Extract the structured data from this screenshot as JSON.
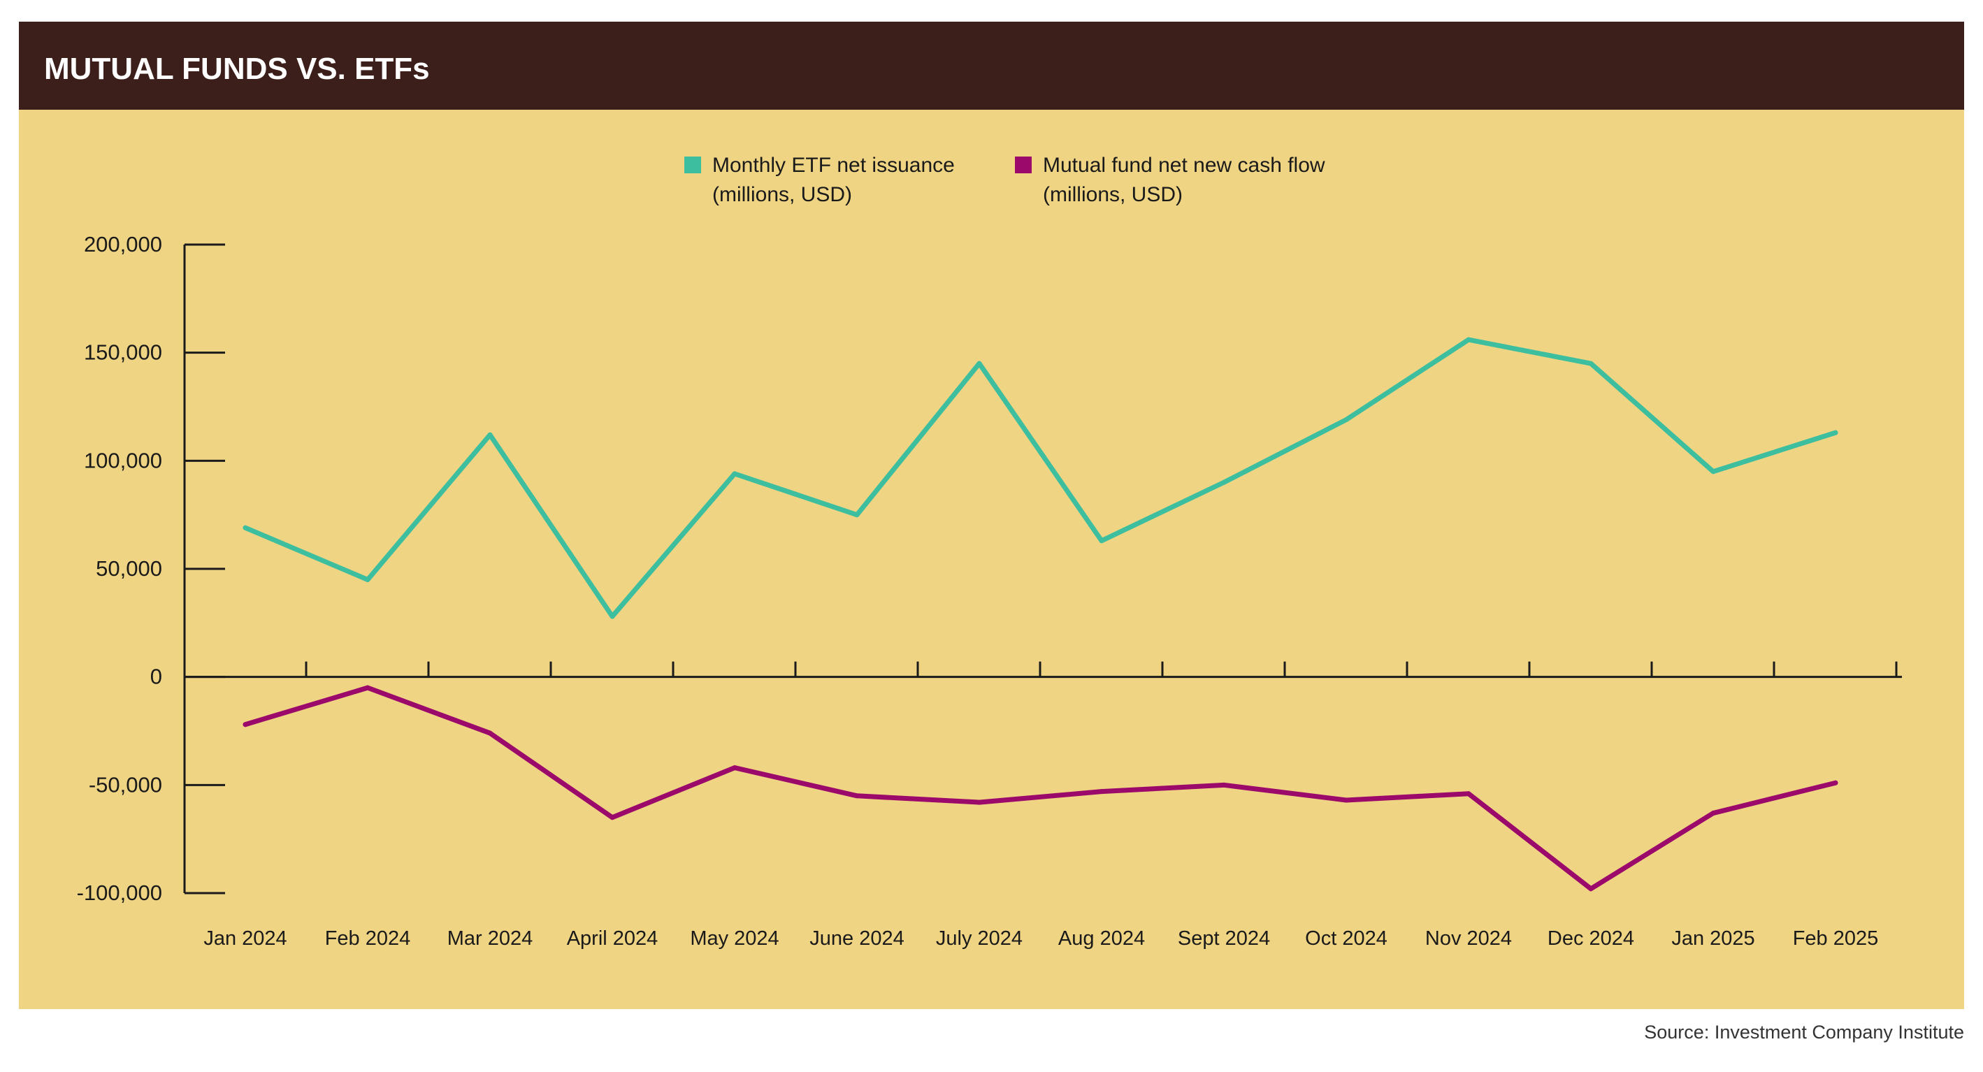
{
  "chart_data": {
    "type": "line",
    "title": "MUTUAL FUNDS VS. ETFs",
    "categories": [
      "Jan 2024",
      "Feb 2024",
      "Mar 2024",
      "April 2024",
      "May 2024",
      "June 2024",
      "July 2024",
      "Aug 2024",
      "Sept 2024",
      "Oct 2024",
      "Nov 2024",
      "Dec 2024",
      "Jan 2025",
      "Feb 2025"
    ],
    "series": [
      {
        "name_line1": "Monthly ETF net issuance",
        "name_line2": "(millions, USD)",
        "color": "#3dbf9f",
        "values": [
          69000,
          45000,
          112000,
          28000,
          94000,
          75000,
          145000,
          63000,
          90000,
          119000,
          156000,
          145000,
          95000,
          113000
        ]
      },
      {
        "name_line1": "Mutual fund net new cash flow",
        "name_line2": "(millions, USD)",
        "color": "#9b0a6b",
        "values": [
          -22000,
          -5000,
          -26000,
          -65000,
          -42000,
          -55000,
          -58000,
          -53000,
          -50000,
          -57000,
          -54000,
          -98000,
          -63000,
          -49000
        ]
      }
    ],
    "y_ticks": [
      200000,
      150000,
      100000,
      50000,
      0,
      -50000,
      -100000
    ],
    "y_tick_labels": [
      "200,000",
      "150,000",
      "100,000",
      "50,000",
      "0",
      "-50,000",
      "-100,000"
    ],
    "ylim": [
      -100000,
      200000
    ],
    "grid": false,
    "legend_position": "top-center",
    "xlabel": "",
    "ylabel": ""
  },
  "colors": {
    "title_bar": "#3c1f1a",
    "plot_background": "#efd484",
    "axis": "#1a1a1a"
  },
  "source": "Source: Investment Company Institute"
}
